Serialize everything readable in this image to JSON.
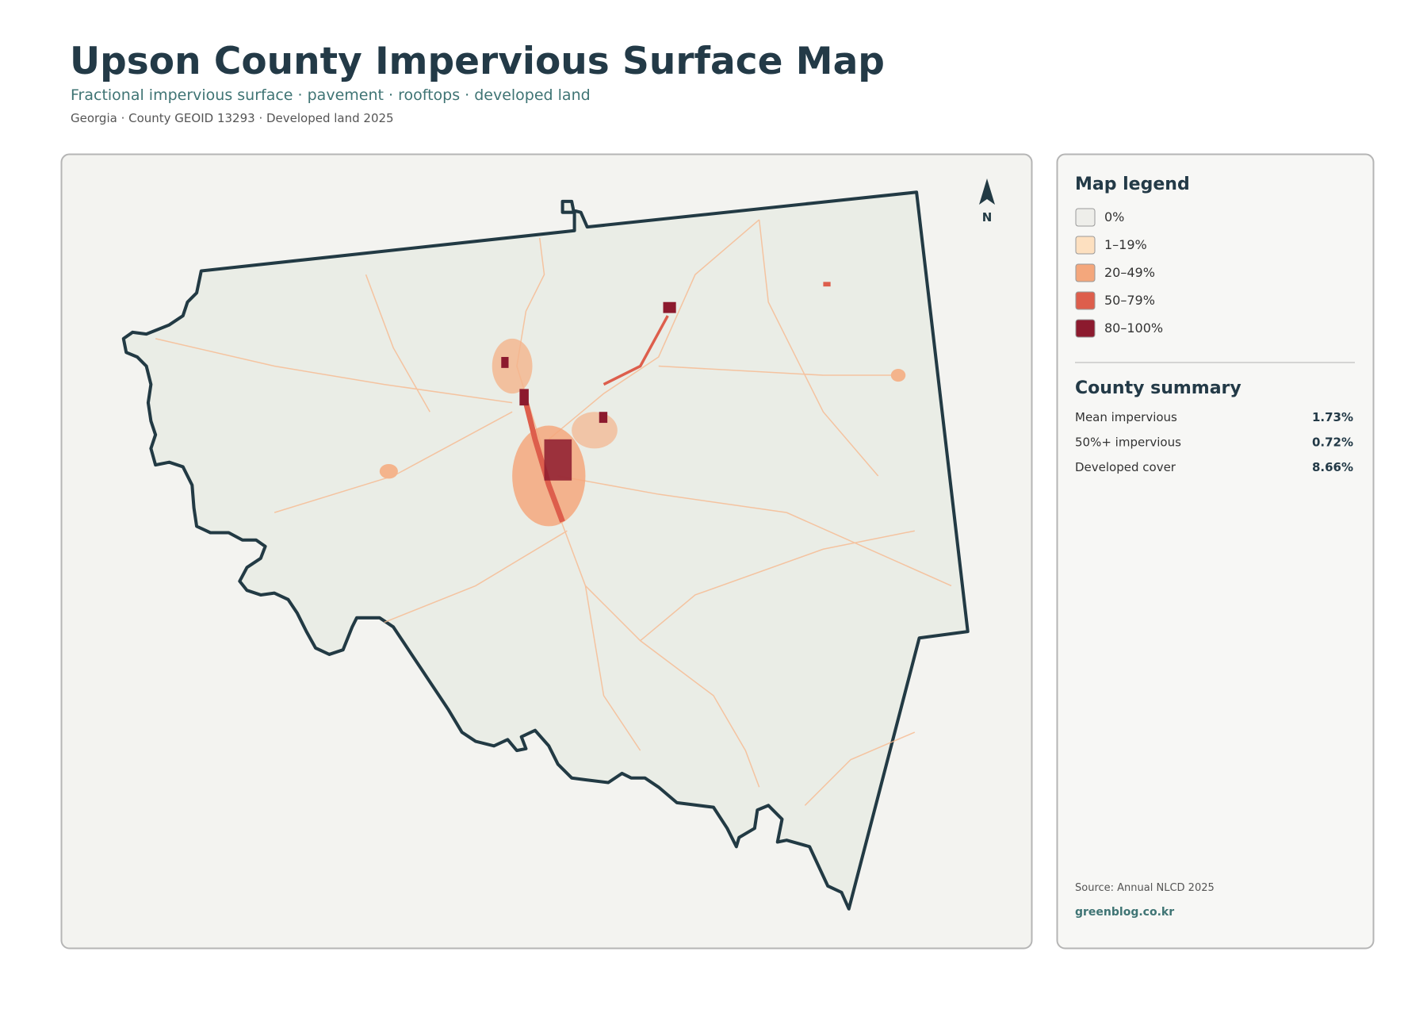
{
  "header": {
    "title": "Upson County Impervious Surface Map",
    "subtitle": "Fractional impervious surface · pavement · rooftops · developed land",
    "meta": "Georgia · County GEOID 13293 · Developed land 2025"
  },
  "map": {
    "north_label": "N"
  },
  "legend": {
    "title": "Map legend",
    "items": [
      {
        "label": "0%",
        "color": "#eeeeea"
      },
      {
        "label": "1–19%",
        "color": "#fde0c0"
      },
      {
        "label": "20–49%",
        "color": "#f4a77c"
      },
      {
        "label": "50–79%",
        "color": "#dd5e4c"
      },
      {
        "label": "80–100%",
        "color": "#8c1a2e"
      }
    ]
  },
  "summary": {
    "title": "County summary",
    "rows": [
      {
        "label": "Mean impervious",
        "value": "1.73%"
      },
      {
        "label": "50%+ impervious",
        "value": "0.72%"
      },
      {
        "label": "Developed cover",
        "value": "8.66%"
      }
    ]
  },
  "footer": {
    "source": "Source: Annual NLCD 2025",
    "site": "greenblog.co.kr"
  }
}
